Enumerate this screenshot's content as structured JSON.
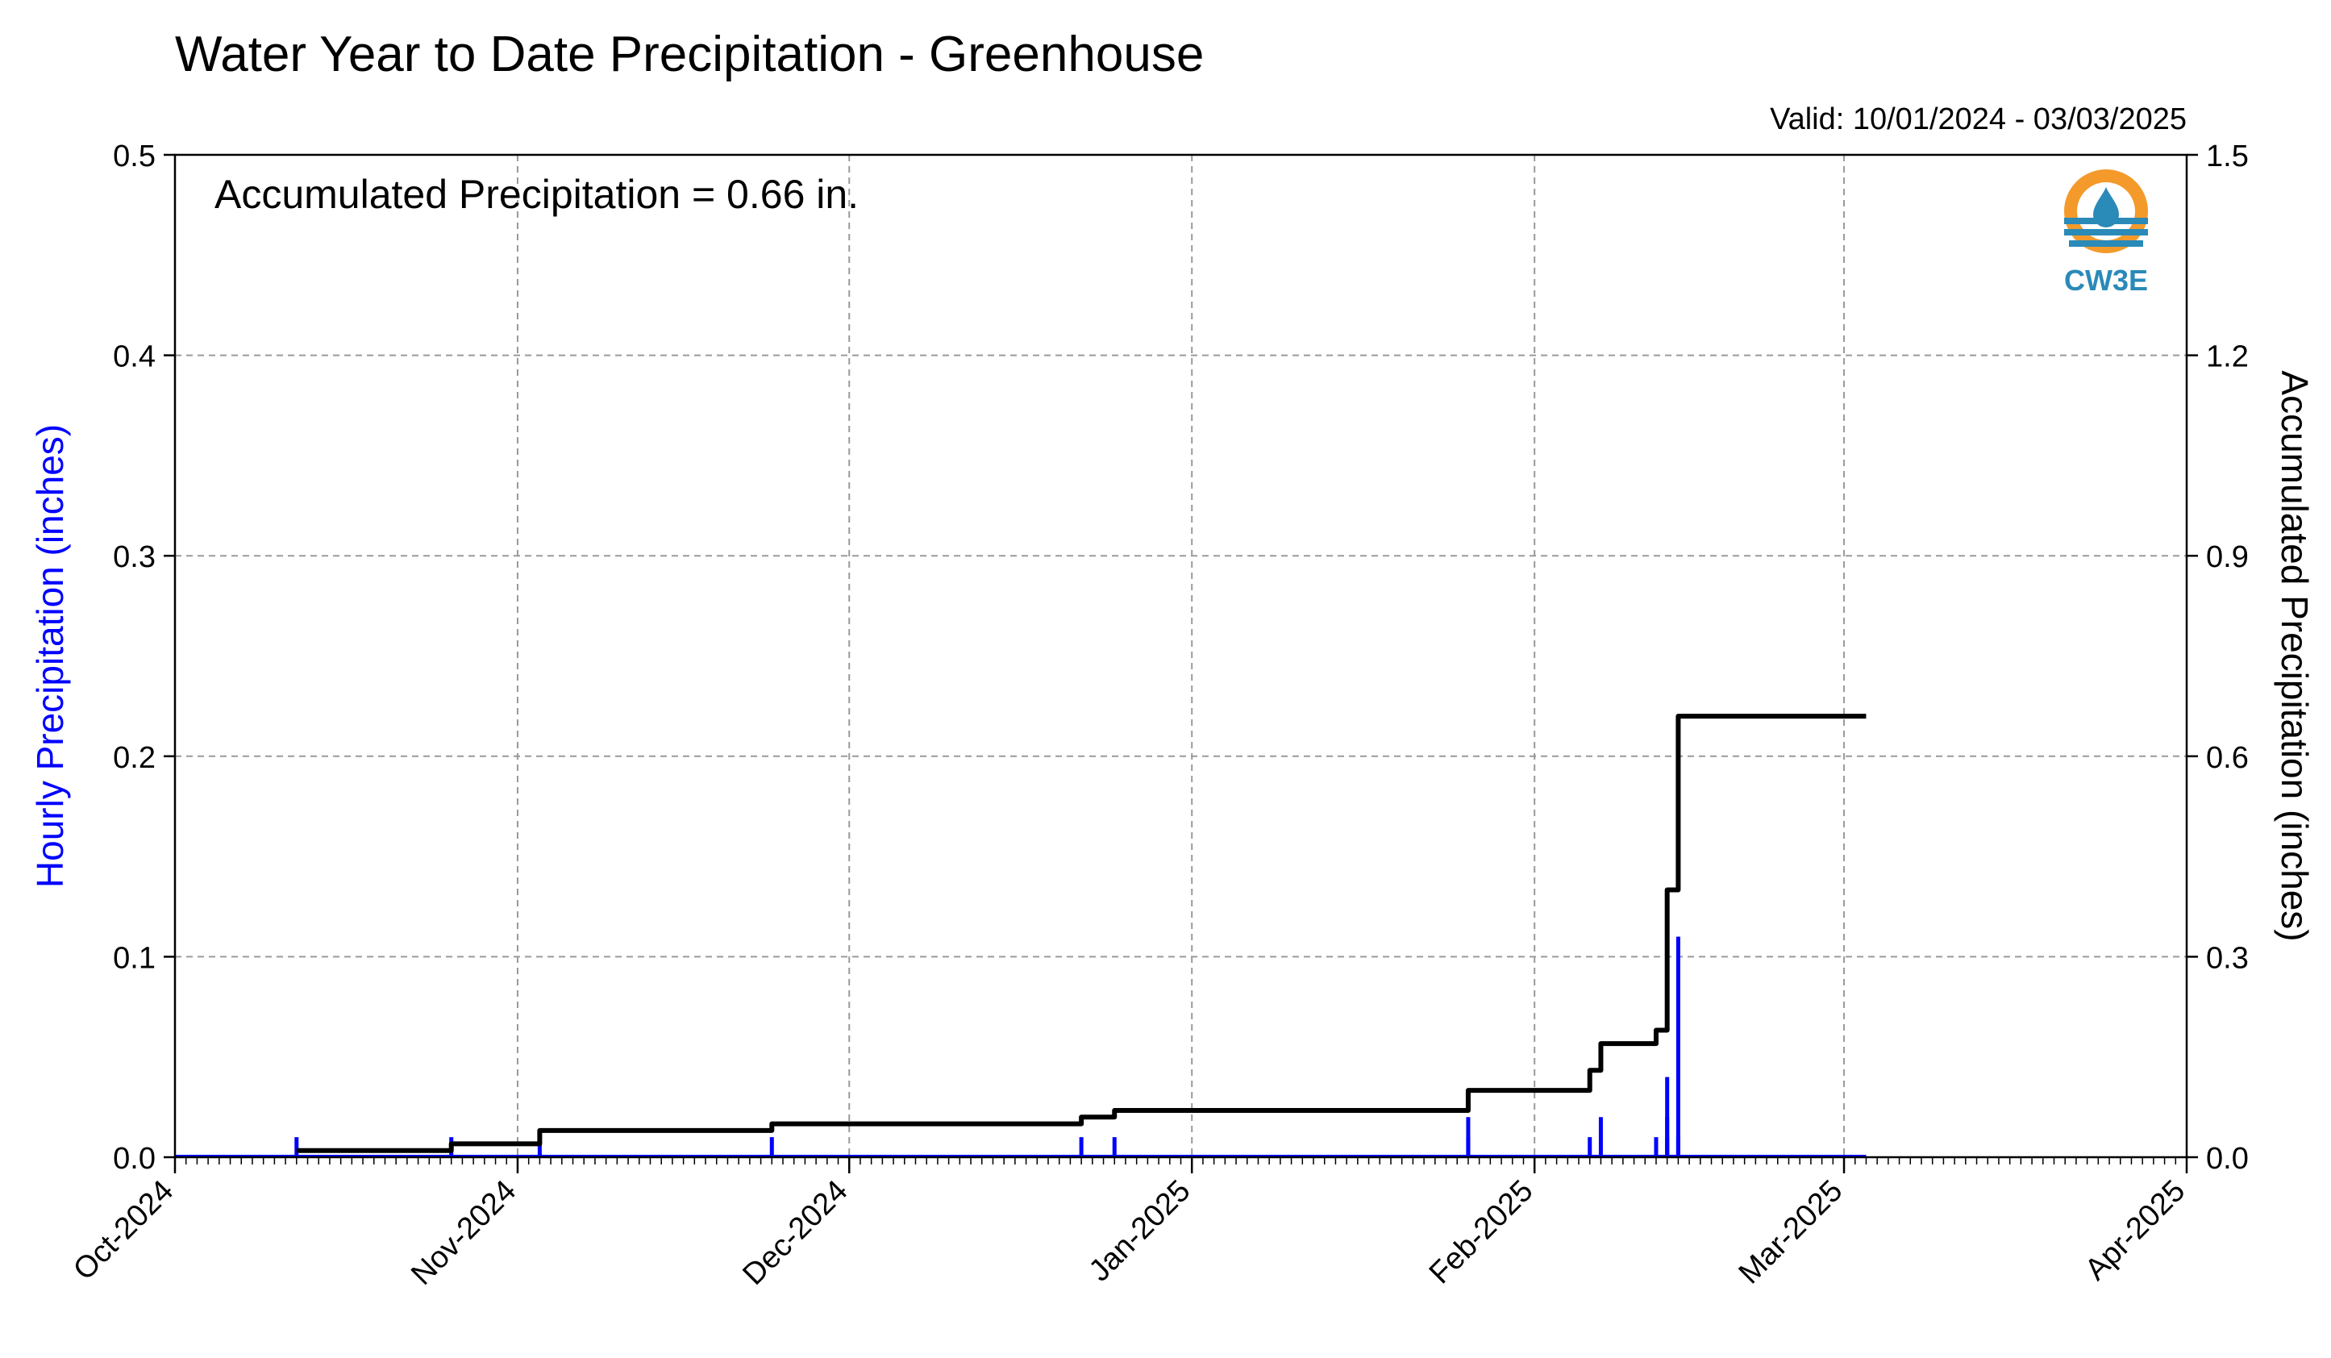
{
  "chart_data": {
    "type": "bar",
    "title": "Water Year to Date Precipitation - Greenhouse",
    "valid_range": "Valid: 10/01/2024 - 03/03/2025",
    "annotation": "Accumulated Precipitation = 0.66 in.",
    "logo_text": "CW3E",
    "left_axis": {
      "label": "Hourly Precipitation (inches)",
      "ylim": [
        0,
        0.5
      ],
      "ticks": [
        "0.0",
        "0.1",
        "0.2",
        "0.3",
        "0.4",
        "0.5"
      ],
      "color": "#0000ff"
    },
    "right_axis": {
      "label": "Accumulated Precipitation (inches)",
      "ylim": [
        0,
        1.5
      ],
      "ticks": [
        "0.0",
        "0.3",
        "0.6",
        "0.9",
        "1.2",
        "1.5"
      ]
    },
    "x_axis": {
      "range": [
        "2024-10-01",
        "2025-04-01"
      ],
      "tick_labels": [
        "Oct-2024",
        "Nov-2024",
        "Dec-2024",
        "Jan-2025",
        "Feb-2025",
        "Mar-2025",
        "Apr-2025"
      ],
      "tick_dates": [
        "2024-10-01",
        "2024-11-01",
        "2024-12-01",
        "2025-01-01",
        "2025-02-01",
        "2025-03-01",
        "2025-04-01"
      ]
    },
    "grid": true,
    "series": [
      {
        "name": "Hourly Precipitation",
        "type": "bar",
        "color": "#0000ff",
        "x": [
          "2024-10-12",
          "2024-10-26",
          "2024-11-03",
          "2024-11-24",
          "2024-12-22",
          "2024-12-25",
          "2025-01-26",
          "2025-01-26",
          "2025-02-06",
          "2025-02-07",
          "2025-02-12",
          "2025-02-13",
          "2025-02-13",
          "2025-02-13",
          "2025-02-14",
          "2025-02-14"
        ],
        "values": [
          0.01,
          0.01,
          0.01,
          0.01,
          0.01,
          0.01,
          0.01,
          0.02,
          0.01,
          0.02,
          0.01,
          0.01,
          0.04,
          0.02,
          0.11,
          0.01
        ]
      },
      {
        "name": "Accumulated Precipitation",
        "type": "line",
        "color": "#000000",
        "x": [
          "2024-10-12",
          "2024-10-26",
          "2024-11-03",
          "2024-11-24",
          "2024-12-22",
          "2024-12-25",
          "2025-01-26",
          "2025-01-26",
          "2025-02-06",
          "2025-02-07",
          "2025-02-12",
          "2025-02-13",
          "2025-02-13",
          "2025-02-13",
          "2025-02-14",
          "2025-02-14",
          "2025-03-03"
        ],
        "values": [
          0.01,
          0.02,
          0.04,
          0.05,
          0.06,
          0.07,
          0.08,
          0.1,
          0.13,
          0.17,
          0.19,
          0.21,
          0.3,
          0.4,
          0.63,
          0.66,
          0.66
        ]
      }
    ]
  }
}
